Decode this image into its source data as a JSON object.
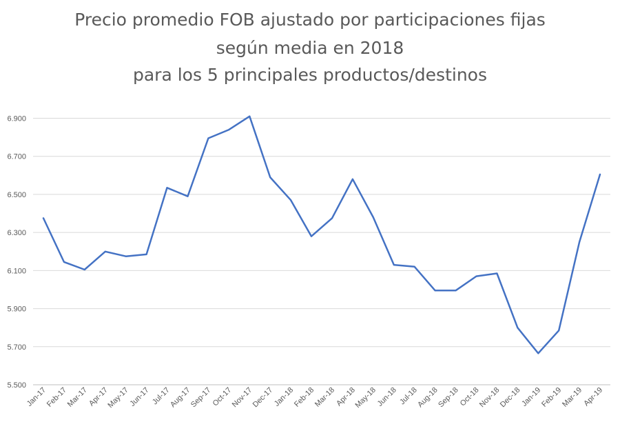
{
  "chart_data": {
    "type": "line",
    "title_lines": [
      "Precio promedio FOB ajustado por participaciones fijas",
      "según media en 2018",
      "para los 5 principales productos/destinos"
    ],
    "categories": [
      "Jan-17",
      "Feb-17",
      "Mar-17",
      "Apr-17",
      "May-17",
      "Jun-17",
      "Jul-17",
      "Aug-17",
      "Sep-17",
      "Oct-17",
      "Nov-17",
      "Dec-17",
      "Jan-18",
      "Feb-18",
      "Mar-18",
      "Apr-18",
      "May-18",
      "Jun-18",
      "Jul-18",
      "Aug-18",
      "Sep-18",
      "Oct-18",
      "Nov-18",
      "Dec-18",
      "Jan-19",
      "Feb-19",
      "Mar-19",
      "Apr-19"
    ],
    "series": [
      {
        "values": [
          6.375,
          6.145,
          6.105,
          6.2,
          6.175,
          6.185,
          6.535,
          6.49,
          6.795,
          6.84,
          6.91,
          6.59,
          6.47,
          6.28,
          6.375,
          6.58,
          6.38,
          6.13,
          6.12,
          5.995,
          5.995,
          6.07,
          6.085,
          5.8,
          5.665,
          5.785,
          6.25,
          6.605
        ],
        "color": "#4472c4"
      }
    ],
    "yticks": [
      "6.900",
      "6.700",
      "6.500",
      "6.300",
      "6.100",
      "5.900",
      "5.700",
      "5.500"
    ],
    "ylim": [
      5.5,
      7.0
    ],
    "grid": true,
    "legend": "none"
  }
}
